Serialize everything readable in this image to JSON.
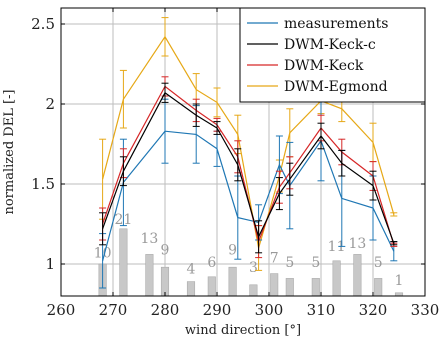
{
  "chart_data": {
    "type": "line",
    "title": "",
    "xlabel": "wind direction [°]",
    "ylabel": "normalized DEL [-]",
    "xlim": [
      260,
      330
    ],
    "ylim": [
      0.8,
      2.6
    ],
    "xticks": [
      260,
      270,
      280,
      290,
      300,
      310,
      320,
      330
    ],
    "yticks": [
      1,
      1.5,
      2,
      2.5
    ],
    "xtick_labels": [
      "260",
      "270",
      "280",
      "290",
      "300",
      "310",
      "320",
      "330"
    ],
    "ytick_labels": [
      "1",
      "1.5",
      "2",
      "2.5"
    ],
    "grid": true,
    "legend_position": "top-right",
    "series": [
      {
        "name": "measurements",
        "color": "#1f77b4",
        "x": [
          268,
          272,
          280,
          286,
          290,
          294,
          298,
          302,
          304,
          310,
          314,
          320,
          324
        ],
        "y": [
          1.02,
          1.51,
          1.83,
          1.81,
          1.72,
          1.29,
          1.26,
          1.62,
          1.49,
          1.77,
          1.41,
          1.35,
          1.08
        ],
        "err": [
          0.17,
          0.27,
          0.2,
          0.18,
          0.11,
          0.26,
          0.11,
          0.18,
          0.27,
          0.25,
          0.3,
          0.2,
          0.06
        ]
      },
      {
        "name": "DWM-Keck-c",
        "color": "#000000",
        "x": [
          268,
          272,
          280,
          286,
          290,
          294,
          298,
          302,
          304,
          310,
          314,
          320,
          324
        ],
        "y": [
          1.22,
          1.58,
          2.07,
          1.93,
          1.85,
          1.62,
          1.17,
          1.44,
          1.53,
          1.8,
          1.63,
          1.49,
          1.13
        ],
        "err": [
          0.1,
          0.09,
          0.06,
          0.07,
          0.04,
          0.1,
          0.1,
          0.1,
          0.1,
          0.08,
          0.08,
          0.09,
          0.01
        ]
      },
      {
        "name": "DWM-Keck",
        "color": "#d62728",
        "x": [
          268,
          272,
          280,
          286,
          290,
          294,
          298,
          302,
          304,
          310,
          314,
          320,
          324
        ],
        "y": [
          1.25,
          1.63,
          2.11,
          1.96,
          1.87,
          1.67,
          1.14,
          1.48,
          1.57,
          1.85,
          1.7,
          1.55,
          1.12
        ],
        "err": [
          0.1,
          0.09,
          0.06,
          0.07,
          0.04,
          0.1,
          0.1,
          0.1,
          0.1,
          0.08,
          0.08,
          0.09,
          0.01
        ]
      },
      {
        "name": "DWM-Egmond",
        "color": "#e6a817",
        "x": [
          268,
          272,
          280,
          286,
          290,
          294,
          298,
          302,
          304,
          310,
          314,
          320,
          324
        ],
        "y": [
          1.53,
          2.03,
          2.42,
          2.09,
          2.01,
          1.81,
          1.1,
          1.55,
          1.82,
          2.02,
          1.97,
          1.76,
          1.31
        ],
        "err": [
          0.25,
          0.18,
          0.12,
          0.1,
          0.09,
          0.12,
          0.14,
          0.1,
          0.15,
          0.08,
          0.08,
          0.12,
          0.01
        ]
      }
    ],
    "bars": {
      "name": "",
      "color": "#c8c8c8",
      "x": [
        268,
        272,
        277,
        280,
        285,
        289,
        293,
        297,
        301,
        304,
        309,
        313,
        317,
        321,
        325
      ],
      "top": [
        1.0,
        1.22,
        1.06,
        0.98,
        0.89,
        0.92,
        0.98,
        0.87,
        0.94,
        0.91,
        0.91,
        1.02,
        1.06,
        0.91,
        0.82
      ],
      "labels": [
        "10",
        "21",
        "13",
        "9",
        "4",
        "6",
        "9",
        "3",
        "7",
        "5",
        "5",
        "11",
        "13",
        "5",
        "1"
      ],
      "label_y": [
        1.04,
        1.25,
        1.13,
        1.06,
        0.94,
        0.98,
        1.06,
        0.95,
        1.01,
        0.98,
        0.98,
        1.08,
        1.1,
        0.98,
        0.87
      ]
    }
  }
}
